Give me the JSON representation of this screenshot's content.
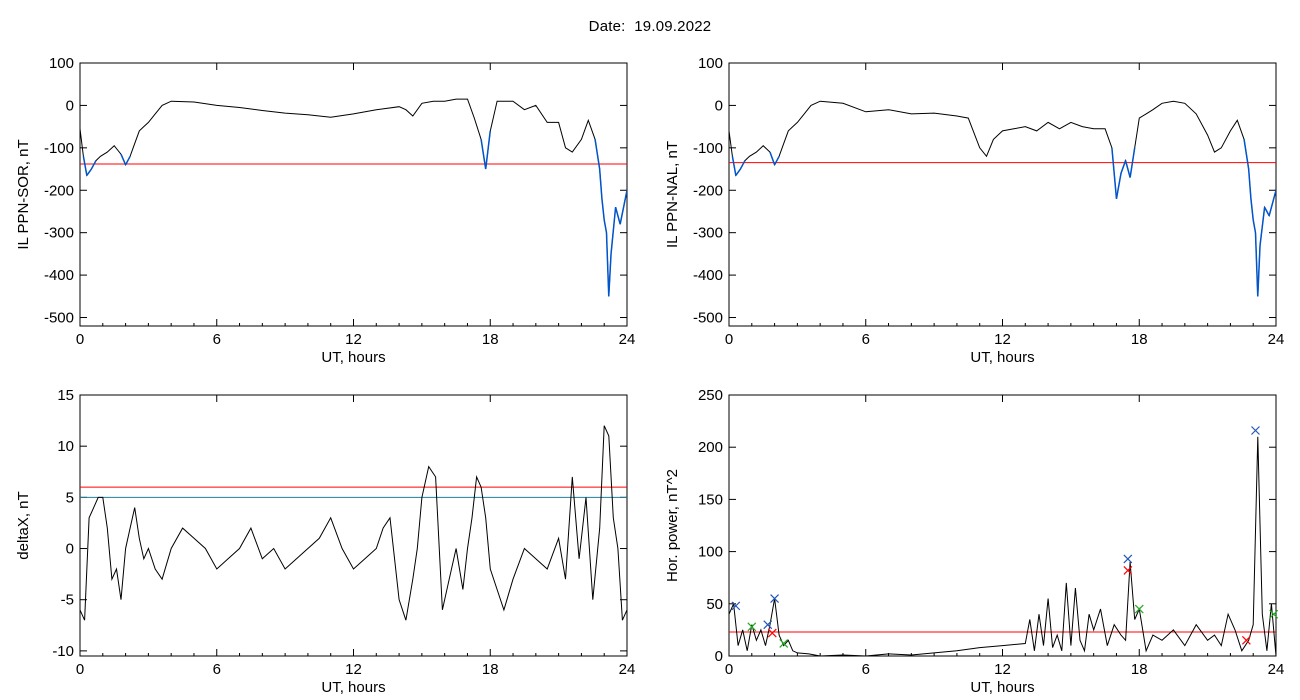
{
  "header": {
    "date_label": "Date:",
    "date_value": "19.09.2022"
  },
  "colors": {
    "series": "#000000",
    "threshold": "#ff0000",
    "threshold2": "#1f7f9f",
    "highlight": "#0055cc",
    "marker_blue": "#2255bb",
    "marker_red": "#ff0000",
    "marker_green": "#22aa22"
  },
  "chart_data": [
    {
      "id": "ppn_sor",
      "type": "line",
      "xlabel": "UT, hours",
      "ylabel": "IL PPN-SOR, nT",
      "xlim": [
        0,
        24
      ],
      "ylim": [
        -520,
        100
      ],
      "xticks": [
        0,
        6,
        12,
        18,
        24
      ],
      "yticks": [
        100,
        0,
        -100,
        -200,
        -300,
        -400,
        -500
      ],
      "threshold": -138,
      "series": [
        {
          "x": [
            0,
            0.15,
            0.3,
            0.5,
            0.7,
            0.9,
            1.2,
            1.5,
            1.8,
            2.0,
            2.2,
            2.4,
            2.6,
            2.8,
            3.0,
            3.3,
            3.6,
            4.0,
            5,
            6,
            7,
            8,
            9,
            10,
            11,
            12,
            13,
            14,
            14.3,
            14.6,
            15,
            15.5,
            16,
            16.5,
            17,
            17.3,
            17.6,
            17.8,
            18.0,
            18.3,
            18.6,
            19,
            19.5,
            20,
            20.5,
            21,
            21.3,
            21.6,
            22.0,
            22.3,
            22.6,
            22.8,
            22.9,
            23.0,
            23.1,
            23.2,
            23.3,
            23.5,
            23.7,
            24
          ],
          "y": [
            -55,
            -120,
            -165,
            -150,
            -130,
            -120,
            -110,
            -95,
            -115,
            -140,
            -120,
            -90,
            -60,
            -50,
            -40,
            -20,
            0,
            10,
            8,
            0,
            -5,
            -12,
            -18,
            -22,
            -28,
            -20,
            -10,
            -3,
            -10,
            -25,
            5,
            10,
            10,
            15,
            15,
            -30,
            -80,
            -150,
            -60,
            10,
            10,
            10,
            -10,
            0,
            -40,
            -40,
            -100,
            -110,
            -80,
            -35,
            -80,
            -150,
            -220,
            -270,
            -300,
            -450,
            -350,
            -240,
            -280,
            -200
          ]
        }
      ],
      "highlight_below": true
    },
    {
      "id": "ppn_nal",
      "type": "line",
      "xlabel": "UT, hours",
      "ylabel": "IL PPN-NAL, nT",
      "xlim": [
        0,
        24
      ],
      "ylim": [
        -520,
        100
      ],
      "xticks": [
        0,
        6,
        12,
        18,
        24
      ],
      "yticks": [
        100,
        0,
        -100,
        -200,
        -300,
        -400,
        -500
      ],
      "threshold": -135,
      "series": [
        {
          "x": [
            0,
            0.15,
            0.3,
            0.5,
            0.7,
            0.9,
            1.2,
            1.5,
            1.8,
            2.0,
            2.2,
            2.4,
            2.6,
            2.8,
            3.0,
            3.3,
            3.6,
            4.0,
            5,
            6,
            7,
            8,
            9,
            10,
            10.5,
            11,
            11.3,
            11.6,
            12,
            12.5,
            13,
            13.5,
            14,
            14.5,
            15,
            15.5,
            16,
            16.5,
            16.8,
            17.0,
            17.2,
            17.4,
            17.6,
            17.8,
            18.0,
            18.3,
            18.6,
            19,
            19.5,
            20,
            20.5,
            21,
            21.3,
            21.6,
            22.0,
            22.3,
            22.6,
            22.8,
            22.9,
            23.0,
            23.1,
            23.2,
            23.3,
            23.5,
            23.7,
            24
          ],
          "y": [
            -60,
            -120,
            -165,
            -150,
            -130,
            -120,
            -110,
            -95,
            -110,
            -140,
            -120,
            -90,
            -60,
            -50,
            -40,
            -20,
            0,
            10,
            5,
            -15,
            -10,
            -20,
            -18,
            -25,
            -30,
            -100,
            -120,
            -80,
            -60,
            -55,
            -50,
            -60,
            -40,
            -55,
            -40,
            -50,
            -55,
            -55,
            -100,
            -220,
            -160,
            -130,
            -170,
            -100,
            -30,
            -20,
            -10,
            5,
            10,
            5,
            -20,
            -70,
            -110,
            -100,
            -60,
            -35,
            -80,
            -150,
            -220,
            -270,
            -300,
            -450,
            -330,
            -240,
            -260,
            -200
          ]
        }
      ],
      "highlight_below": true
    },
    {
      "id": "deltax",
      "type": "line",
      "xlabel": "UT, hours",
      "ylabel": "deltaX, nT",
      "xlim": [
        0,
        24
      ],
      "ylim": [
        -10.5,
        15
      ],
      "xticks": [
        0,
        6,
        12,
        18,
        24
      ],
      "yticks": [
        15,
        10,
        5,
        0,
        -5,
        -10
      ],
      "thresholds": [
        6,
        5
      ],
      "series": [
        {
          "x": [
            0,
            0.2,
            0.4,
            0.6,
            0.8,
            1.0,
            1.2,
            1.4,
            1.6,
            1.8,
            2.0,
            2.2,
            2.4,
            2.6,
            2.8,
            3.0,
            3.3,
            3.6,
            4.0,
            4.5,
            5,
            5.5,
            6,
            6.5,
            7,
            7.5,
            8,
            8.5,
            9,
            9.5,
            10,
            10.5,
            11,
            11.5,
            12,
            12.5,
            13,
            13.3,
            13.6,
            14,
            14.3,
            14.6,
            14.8,
            15.0,
            15.3,
            15.6,
            15.9,
            16.2,
            16.5,
            16.8,
            17.0,
            17.2,
            17.4,
            17.6,
            17.8,
            18.0,
            18.3,
            18.6,
            19,
            19.5,
            20,
            20.5,
            21,
            21.3,
            21.6,
            21.9,
            22.2,
            22.5,
            22.8,
            23.0,
            23.2,
            23.4,
            23.6,
            23.8,
            24
          ],
          "y": [
            -6,
            -7,
            3,
            4,
            5,
            5,
            2,
            -3,
            -2,
            -5,
            0,
            2,
            4,
            1,
            -1,
            0,
            -2,
            -3,
            0,
            2,
            1,
            0,
            -2,
            -1,
            0,
            2,
            -1,
            0,
            -2,
            -1,
            0,
            1,
            3,
            0,
            -2,
            -1,
            0,
            2,
            3,
            -5,
            -7,
            -3,
            0,
            5,
            8,
            7,
            -6,
            -3,
            0,
            -4,
            0,
            3,
            7,
            6,
            3,
            -2,
            -4,
            -6,
            -3,
            0,
            -1,
            -2,
            1,
            -3,
            7,
            -1,
            5,
            -5,
            2,
            12,
            11,
            3,
            0,
            -7,
            -6
          ]
        }
      ]
    },
    {
      "id": "hor_power",
      "type": "line",
      "xlabel": "UT, hours",
      "ylabel": "Hor. power, nT^2",
      "xlim": [
        0,
        24
      ],
      "ylim": [
        0,
        250
      ],
      "xticks": [
        0,
        6,
        12,
        18,
        24
      ],
      "yticks": [
        250,
        200,
        150,
        100,
        50,
        0
      ],
      "threshold": 23,
      "series": [
        {
          "x": [
            0,
            0.2,
            0.4,
            0.6,
            0.8,
            1.0,
            1.2,
            1.4,
            1.6,
            1.8,
            2.0,
            2.2,
            2.4,
            2.6,
            2.8,
            3.0,
            3.5,
            4,
            5,
            6,
            7,
            8,
            9,
            10,
            11,
            12,
            13,
            13.2,
            13.4,
            13.6,
            13.8,
            14.0,
            14.2,
            14.4,
            14.6,
            14.8,
            15.0,
            15.2,
            15.4,
            15.6,
            15.8,
            16.0,
            16.3,
            16.6,
            16.9,
            17.2,
            17.4,
            17.6,
            17.8,
            18.0,
            18.3,
            18.6,
            19,
            19.5,
            20,
            20.5,
            21,
            21.3,
            21.6,
            21.9,
            22.2,
            22.5,
            22.8,
            23.0,
            23.2,
            23.4,
            23.6,
            23.8,
            24
          ],
          "y": [
            40,
            50,
            10,
            25,
            5,
            30,
            15,
            25,
            10,
            30,
            55,
            20,
            10,
            15,
            5,
            3,
            2,
            0,
            1,
            0,
            2,
            1,
            3,
            5,
            8,
            10,
            12,
            35,
            5,
            40,
            10,
            55,
            8,
            20,
            5,
            70,
            10,
            65,
            15,
            5,
            40,
            25,
            45,
            10,
            30,
            20,
            15,
            90,
            35,
            45,
            5,
            20,
            15,
            25,
            10,
            30,
            15,
            20,
            10,
            40,
            25,
            5,
            15,
            30,
            210,
            40,
            5,
            50,
            0
          ]
        }
      ],
      "markers": [
        {
          "x": 0.3,
          "y": 48,
          "color": "blue"
        },
        {
          "x": 2.0,
          "y": 55,
          "color": "blue"
        },
        {
          "x": 1.7,
          "y": 30,
          "color": "blue"
        },
        {
          "x": 17.5,
          "y": 93,
          "color": "blue"
        },
        {
          "x": 23.1,
          "y": 216,
          "color": "blue"
        },
        {
          "x": 17.5,
          "y": 82,
          "color": "red"
        },
        {
          "x": 22.7,
          "y": 15,
          "color": "red"
        },
        {
          "x": 1.9,
          "y": 22,
          "color": "red"
        },
        {
          "x": 1.0,
          "y": 28,
          "color": "green"
        },
        {
          "x": 2.4,
          "y": 12,
          "color": "green"
        },
        {
          "x": 18.0,
          "y": 45,
          "color": "green"
        },
        {
          "x": 23.9,
          "y": 40,
          "color": "green"
        }
      ]
    }
  ]
}
